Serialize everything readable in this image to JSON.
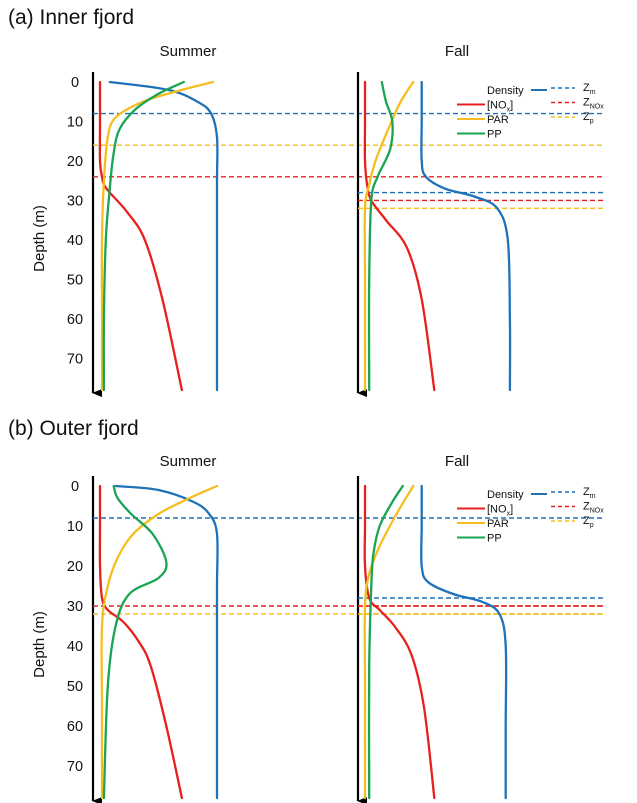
{
  "chart_data": [
    {
      "type": "line",
      "panel_label": "(a)",
      "panel_title": "Inner fjord",
      "season": "Summer",
      "ylabel": "Depth (m)",
      "y_ticks": [
        0,
        10,
        20,
        30,
        40,
        50,
        60,
        70
      ],
      "ylim": [
        0,
        78
      ],
      "y_inverted": true,
      "series": [
        {
          "name": "Density",
          "color": "#1f72b8",
          "x": [
            0.05,
            0.35,
            0.5,
            0.57,
            0.6,
            0.6,
            0.6,
            0.6,
            0.6
          ],
          "y": [
            0,
            2,
            5,
            8,
            14,
            25,
            40,
            60,
            78
          ]
        },
        {
          "name": "[NOx]",
          "color": "#e8201c",
          "x": [
            0.0,
            0.0,
            0.0,
            0.01,
            0.02,
            0.05,
            0.14,
            0.23,
            0.32,
            0.42
          ],
          "y": [
            0,
            10,
            20,
            24,
            26,
            28,
            33,
            40,
            55,
            78
          ]
        },
        {
          "name": "PAR",
          "color": "#f5bd1f",
          "x": [
            0.58,
            0.42,
            0.22,
            0.08,
            0.04,
            0.02,
            0.01,
            0.01,
            0.01
          ],
          "y": [
            0,
            2,
            5,
            9,
            14,
            25,
            40,
            60,
            78
          ]
        },
        {
          "name": "PP",
          "color": "#1aa553",
          "x": [
            0.43,
            0.3,
            0.18,
            0.1,
            0.07,
            0.05,
            0.03,
            0.02,
            0.02
          ],
          "y": [
            0,
            3,
            7,
            12,
            18,
            27,
            40,
            60,
            78
          ]
        }
      ],
      "reference_lines": [
        {
          "name": "Zm",
          "color": "#1f72b8",
          "depth": 8
        },
        {
          "name": "ZNOx",
          "color": "#e8201c",
          "depth": 24
        },
        {
          "name": "Zp",
          "color": "#f5bd1f",
          "depth": 16
        }
      ]
    },
    {
      "type": "line",
      "panel_label": "(a)",
      "panel_title": "Inner fjord",
      "season": "Fall",
      "ylim": [
        0,
        78
      ],
      "y_inverted": true,
      "series": [
        {
          "name": "Density",
          "color": "#1f72b8",
          "x": [
            0.27,
            0.27,
            0.27,
            0.29,
            0.38,
            0.52,
            0.63,
            0.68,
            0.69,
            0.69
          ],
          "y": [
            0,
            10,
            20,
            24,
            27,
            29,
            32,
            40,
            60,
            78
          ]
        },
        {
          "name": "[NOx]",
          "color": "#e8201c",
          "x": [
            0.0,
            0.0,
            0.0,
            0.01,
            0.03,
            0.1,
            0.2,
            0.27,
            0.33
          ],
          "y": [
            0,
            10,
            20,
            26,
            30,
            35,
            42,
            55,
            78
          ]
        },
        {
          "name": "PAR",
          "color": "#f5bd1f",
          "x": [
            0.23,
            0.17,
            0.11,
            0.05,
            0.02,
            0.0,
            0.0,
            0.0
          ],
          "y": [
            0,
            5,
            12,
            20,
            26,
            32,
            50,
            78
          ]
        },
        {
          "name": "PP",
          "color": "#1aa553",
          "x": [
            0.08,
            0.1,
            0.13,
            0.12,
            0.06,
            0.03,
            0.02,
            0.02
          ],
          "y": [
            0,
            5,
            10,
            17,
            24,
            30,
            50,
            78
          ]
        }
      ],
      "reference_lines": [
        {
          "name": "Zm",
          "color": "#1f72b8",
          "depth": 28
        },
        {
          "name": "ZNOx",
          "color": "#e8201c",
          "depth": 30
        },
        {
          "name": "Zp",
          "color": "#f5bd1f",
          "depth": 32
        }
      ]
    },
    {
      "type": "line",
      "panel_label": "(b)",
      "panel_title": "Outer fjord",
      "season": "Summer",
      "ylabel": "Depth (m)",
      "y_ticks": [
        0,
        10,
        20,
        30,
        40,
        50,
        60,
        70
      ],
      "ylim": [
        0,
        78
      ],
      "y_inverted": true,
      "series": [
        {
          "name": "Density",
          "color": "#1f72b8",
          "x": [
            0.08,
            0.3,
            0.48,
            0.56,
            0.6,
            0.6,
            0.6,
            0.6,
            0.6
          ],
          "y": [
            0,
            1,
            4,
            7,
            12,
            25,
            40,
            60,
            78
          ]
        },
        {
          "name": "[NOx]",
          "color": "#e8201c",
          "x": [
            0.0,
            0.0,
            0.0,
            0.01,
            0.04,
            0.12,
            0.2,
            0.26,
            0.34,
            0.42
          ],
          "y": [
            0,
            10,
            20,
            28,
            31,
            34,
            39,
            45,
            60,
            78
          ]
        },
        {
          "name": "PAR",
          "color": "#f5bd1f",
          "x": [
            0.6,
            0.46,
            0.3,
            0.17,
            0.09,
            0.04,
            0.01,
            0.01,
            0.01
          ],
          "y": [
            0,
            3,
            7,
            12,
            18,
            25,
            35,
            55,
            78
          ]
        },
        {
          "name": "PP",
          "color": "#1aa553",
          "x": [
            0.07,
            0.09,
            0.16,
            0.27,
            0.34,
            0.3,
            0.15,
            0.08,
            0.04,
            0.02
          ],
          "y": [
            0,
            3,
            7,
            12,
            19,
            23,
            27,
            35,
            50,
            78
          ]
        }
      ],
      "reference_lines": [
        {
          "name": "Zm",
          "color": "#1f72b8",
          "depth": 8
        },
        {
          "name": "ZNOx",
          "color": "#e8201c",
          "depth": 30
        },
        {
          "name": "Zp",
          "color": "#f5bd1f",
          "depth": 32
        }
      ]
    },
    {
      "type": "line",
      "panel_label": "(b)",
      "panel_title": "Outer fjord",
      "season": "Fall",
      "ylim": [
        0,
        78
      ],
      "y_inverted": true,
      "series": [
        {
          "name": "Density",
          "color": "#1f72b8",
          "x": [
            0.27,
            0.27,
            0.27,
            0.3,
            0.42,
            0.56,
            0.64,
            0.67,
            0.67,
            0.67
          ],
          "y": [
            0,
            10,
            20,
            24,
            27,
            29,
            32,
            40,
            60,
            78
          ]
        },
        {
          "name": "[NOx]",
          "color": "#e8201c",
          "x": [
            0.0,
            0.0,
            0.0,
            0.02,
            0.07,
            0.14,
            0.22,
            0.28,
            0.33
          ],
          "y": [
            0,
            10,
            20,
            28,
            31,
            35,
            42,
            55,
            78
          ]
        },
        {
          "name": "PAR",
          "color": "#f5bd1f",
          "x": [
            0.23,
            0.15,
            0.07,
            0.02,
            0.0,
            0.0,
            0.0
          ],
          "y": [
            0,
            7,
            15,
            22,
            30,
            50,
            78
          ]
        },
        {
          "name": "PP",
          "color": "#1aa553",
          "x": [
            0.18,
            0.13,
            0.07,
            0.04,
            0.03,
            0.02,
            0.02
          ],
          "y": [
            0,
            4,
            10,
            17,
            25,
            45,
            78
          ]
        }
      ],
      "reference_lines": [
        {
          "name": "Zm",
          "color": "#1f72b8",
          "depth": 28
        },
        {
          "name": "ZNOx",
          "color": "#e8201c",
          "depth": 30
        },
        {
          "name": "Zp",
          "color": "#f5bd1f",
          "depth": 32
        }
      ]
    }
  ],
  "legend": {
    "series": [
      {
        "label": "Density",
        "color": "#1f72b8"
      },
      {
        "label_main": "[NO",
        "label_sub": "x",
        "label_tail": "]",
        "color": "#e8201c"
      },
      {
        "label": "PAR",
        "color": "#f5bd1f"
      },
      {
        "label": "PP",
        "color": "#1aa553"
      }
    ],
    "reference": [
      {
        "label_main": "Z",
        "label_sub": "m",
        "color": "#1f72b8"
      },
      {
        "label_main": "Z",
        "label_sub": "NOx",
        "color": "#e8201c"
      },
      {
        "label_main": "Z",
        "label_sub": "p",
        "color": "#f5bd1f"
      }
    ]
  }
}
